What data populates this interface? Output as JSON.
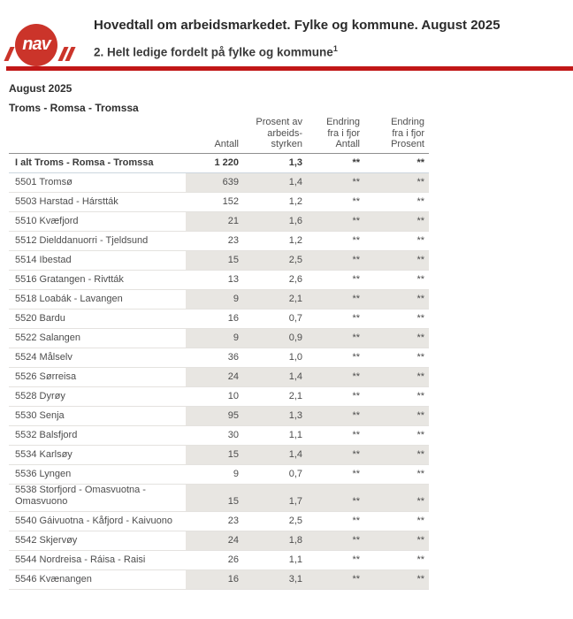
{
  "colors": {
    "brand_red": "#c11717",
    "logo_red": "#cb342a",
    "row_shading": "#e8e6e2"
  },
  "header": {
    "logo_text": "nav",
    "title": "Hovedtall om arbeidsmarkedet. Fylke og kommune. August 2025",
    "subtitle": "2. Helt ledige fordelt på fylke og kommune",
    "subtitle_footnote_mark": "1"
  },
  "report": {
    "period": "August 2025",
    "region": "Troms - Romsa - Tromssa"
  },
  "table": {
    "headers": {
      "antall": [
        "Antall"
      ],
      "prosent": [
        "Prosent av",
        "arbeids-",
        "styrken"
      ],
      "endring_antall": [
        "Endring",
        "fra i fjor",
        "Antall"
      ],
      "endring_prosent": [
        "Endring",
        "fra i fjor",
        "Prosent"
      ]
    },
    "rows": [
      {
        "name": "I alt Troms - Romsa - Tromssa",
        "antall": "1 220",
        "prosent": "1,3",
        "endring_antall": "**",
        "endring_prosent": "**",
        "total": true,
        "shaded": false
      },
      {
        "name": "5501 Tromsø",
        "antall": "639",
        "prosent": "1,4",
        "endring_antall": "**",
        "endring_prosent": "**",
        "total": false,
        "shaded": true
      },
      {
        "name": "5503 Harstad - Hárstták",
        "antall": "152",
        "prosent": "1,2",
        "endring_antall": "**",
        "endring_prosent": "**",
        "total": false,
        "shaded": false
      },
      {
        "name": "5510 Kvæfjord",
        "antall": "21",
        "prosent": "1,6",
        "endring_antall": "**",
        "endring_prosent": "**",
        "total": false,
        "shaded": true
      },
      {
        "name": "5512 Dielddanuorri - Tjeldsund",
        "antall": "23",
        "prosent": "1,2",
        "endring_antall": "**",
        "endring_prosent": "**",
        "total": false,
        "shaded": false
      },
      {
        "name": "5514 Ibestad",
        "antall": "15",
        "prosent": "2,5",
        "endring_antall": "**",
        "endring_prosent": "**",
        "total": false,
        "shaded": true
      },
      {
        "name": "5516 Gratangen - Rivtták",
        "antall": "13",
        "prosent": "2,6",
        "endring_antall": "**",
        "endring_prosent": "**",
        "total": false,
        "shaded": false
      },
      {
        "name": "5518 Loabák - Lavangen",
        "antall": "9",
        "prosent": "2,1",
        "endring_antall": "**",
        "endring_prosent": "**",
        "total": false,
        "shaded": true
      },
      {
        "name": "5520 Bardu",
        "antall": "16",
        "prosent": "0,7",
        "endring_antall": "**",
        "endring_prosent": "**",
        "total": false,
        "shaded": false
      },
      {
        "name": "5522 Salangen",
        "antall": "9",
        "prosent": "0,9",
        "endring_antall": "**",
        "endring_prosent": "**",
        "total": false,
        "shaded": true
      },
      {
        "name": "5524 Målselv",
        "antall": "36",
        "prosent": "1,0",
        "endring_antall": "**",
        "endring_prosent": "**",
        "total": false,
        "shaded": false
      },
      {
        "name": "5526 Sørreisa",
        "antall": "24",
        "prosent": "1,4",
        "endring_antall": "**",
        "endring_prosent": "**",
        "total": false,
        "shaded": true
      },
      {
        "name": "5528 Dyrøy",
        "antall": "10",
        "prosent": "2,1",
        "endring_antall": "**",
        "endring_prosent": "**",
        "total": false,
        "shaded": false
      },
      {
        "name": "5530 Senja",
        "antall": "95",
        "prosent": "1,3",
        "endring_antall": "**",
        "endring_prosent": "**",
        "total": false,
        "shaded": true
      },
      {
        "name": "5532 Balsfjord",
        "antall": "30",
        "prosent": "1,1",
        "endring_antall": "**",
        "endring_prosent": "**",
        "total": false,
        "shaded": false
      },
      {
        "name": "5534 Karlsøy",
        "antall": "15",
        "prosent": "1,4",
        "endring_antall": "**",
        "endring_prosent": "**",
        "total": false,
        "shaded": true
      },
      {
        "name": "5536 Lyngen",
        "antall": "9",
        "prosent": "0,7",
        "endring_antall": "**",
        "endring_prosent": "**",
        "total": false,
        "shaded": false
      },
      {
        "name": "5538 Storfjord - Omasvuotna - Omasvuono",
        "antall": "15",
        "prosent": "1,7",
        "endring_antall": "**",
        "endring_prosent": "**",
        "total": false,
        "shaded": true
      },
      {
        "name": "5540 Gáivuotna - Kåfjord - Kaivuono",
        "antall": "23",
        "prosent": "2,5",
        "endring_antall": "**",
        "endring_prosent": "**",
        "total": false,
        "shaded": false
      },
      {
        "name": "5542 Skjervøy",
        "antall": "24",
        "prosent": "1,8",
        "endring_antall": "**",
        "endring_prosent": "**",
        "total": false,
        "shaded": true
      },
      {
        "name": "5544 Nordreisa - Ráisa - Raisi",
        "antall": "26",
        "prosent": "1,1",
        "endring_antall": "**",
        "endring_prosent": "**",
        "total": false,
        "shaded": false
      },
      {
        "name": "5546 Kvænangen",
        "antall": "16",
        "prosent": "3,1",
        "endring_antall": "**",
        "endring_prosent": "**",
        "total": false,
        "shaded": true
      }
    ]
  }
}
